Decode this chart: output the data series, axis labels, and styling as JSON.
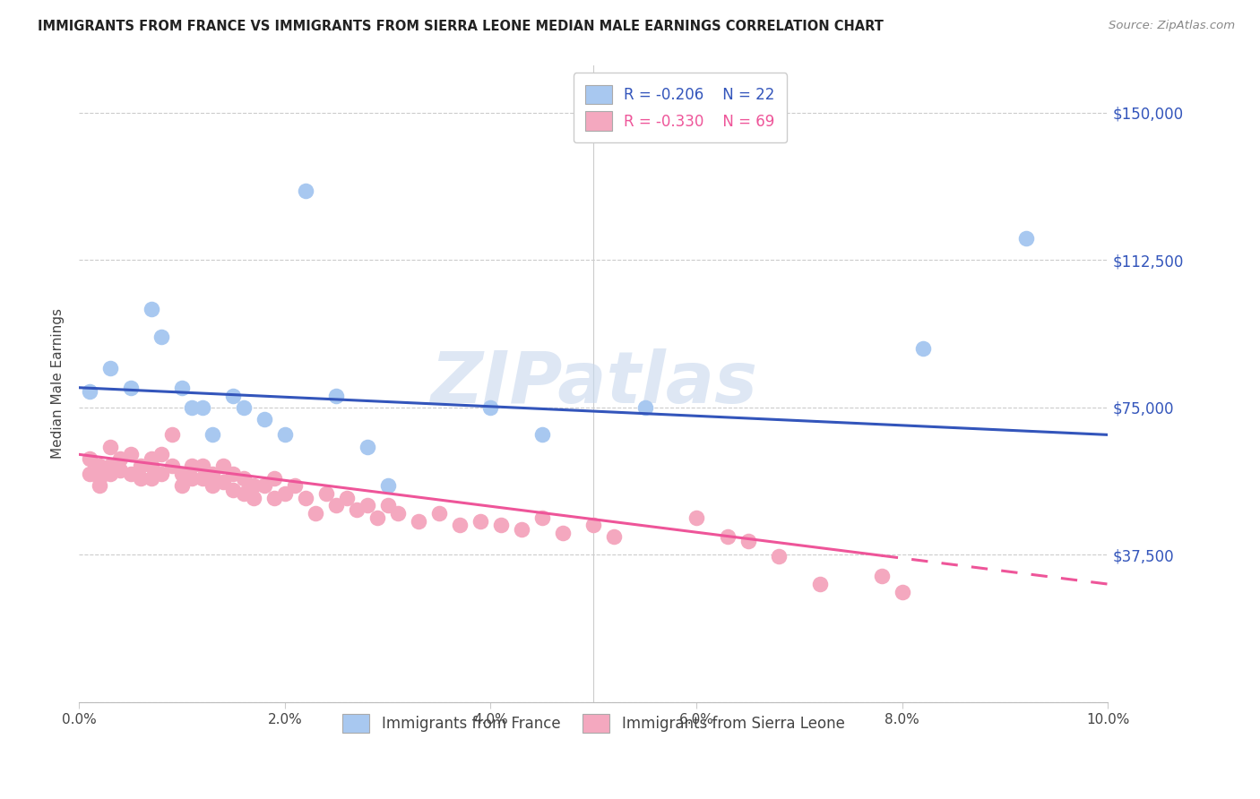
{
  "title": "IMMIGRANTS FROM FRANCE VS IMMIGRANTS FROM SIERRA LEONE MEDIAN MALE EARNINGS CORRELATION CHART",
  "source": "Source: ZipAtlas.com",
  "ylabel": "Median Male Earnings",
  "yticks": [
    0,
    37500,
    75000,
    112500,
    150000
  ],
  "ytick_labels": [
    "",
    "$37,500",
    "$75,000",
    "$112,500",
    "$150,000"
  ],
  "xlim": [
    0,
    0.1
  ],
  "ylim": [
    0,
    162000
  ],
  "france_color": "#a8c8f0",
  "sierra_leone_color": "#f4a8bf",
  "france_line_color": "#3355bb",
  "sierra_leone_line_color": "#ee5599",
  "legend_R_france": "-0.206",
  "legend_N_france": "22",
  "legend_R_sierra": "-0.330",
  "legend_N_sierra": "69",
  "watermark": "ZIPatlas",
  "france_x": [
    0.001,
    0.003,
    0.005,
    0.007,
    0.008,
    0.01,
    0.011,
    0.012,
    0.013,
    0.015,
    0.016,
    0.018,
    0.02,
    0.022,
    0.025,
    0.028,
    0.03,
    0.04,
    0.045,
    0.055,
    0.082,
    0.092
  ],
  "france_y": [
    79000,
    85000,
    80000,
    100000,
    93000,
    80000,
    75000,
    75000,
    68000,
    78000,
    75000,
    72000,
    68000,
    130000,
    78000,
    65000,
    55000,
    75000,
    68000,
    75000,
    90000,
    118000
  ],
  "sierra_leone_x": [
    0.001,
    0.001,
    0.002,
    0.002,
    0.002,
    0.003,
    0.003,
    0.003,
    0.004,
    0.004,
    0.005,
    0.005,
    0.006,
    0.006,
    0.007,
    0.007,
    0.007,
    0.008,
    0.008,
    0.009,
    0.009,
    0.01,
    0.01,
    0.011,
    0.011,
    0.012,
    0.012,
    0.013,
    0.013,
    0.014,
    0.014,
    0.015,
    0.015,
    0.016,
    0.016,
    0.017,
    0.017,
    0.018,
    0.019,
    0.019,
    0.02,
    0.021,
    0.022,
    0.023,
    0.024,
    0.025,
    0.026,
    0.027,
    0.028,
    0.029,
    0.03,
    0.031,
    0.033,
    0.035,
    0.037,
    0.039,
    0.041,
    0.043,
    0.045,
    0.047,
    0.05,
    0.052,
    0.06,
    0.063,
    0.065,
    0.068,
    0.072,
    0.078,
    0.08
  ],
  "sierra_leone_y": [
    62000,
    58000,
    60000,
    57000,
    55000,
    65000,
    60000,
    58000,
    62000,
    59000,
    63000,
    58000,
    60000,
    57000,
    62000,
    60000,
    57000,
    63000,
    58000,
    68000,
    60000,
    58000,
    55000,
    60000,
    57000,
    60000,
    57000,
    58000,
    55000,
    60000,
    56000,
    58000,
    54000,
    57000,
    53000,
    55000,
    52000,
    55000,
    52000,
    57000,
    53000,
    55000,
    52000,
    48000,
    53000,
    50000,
    52000,
    49000,
    50000,
    47000,
    50000,
    48000,
    46000,
    48000,
    45000,
    46000,
    45000,
    44000,
    47000,
    43000,
    45000,
    42000,
    47000,
    42000,
    41000,
    37000,
    30000,
    32000,
    28000
  ]
}
